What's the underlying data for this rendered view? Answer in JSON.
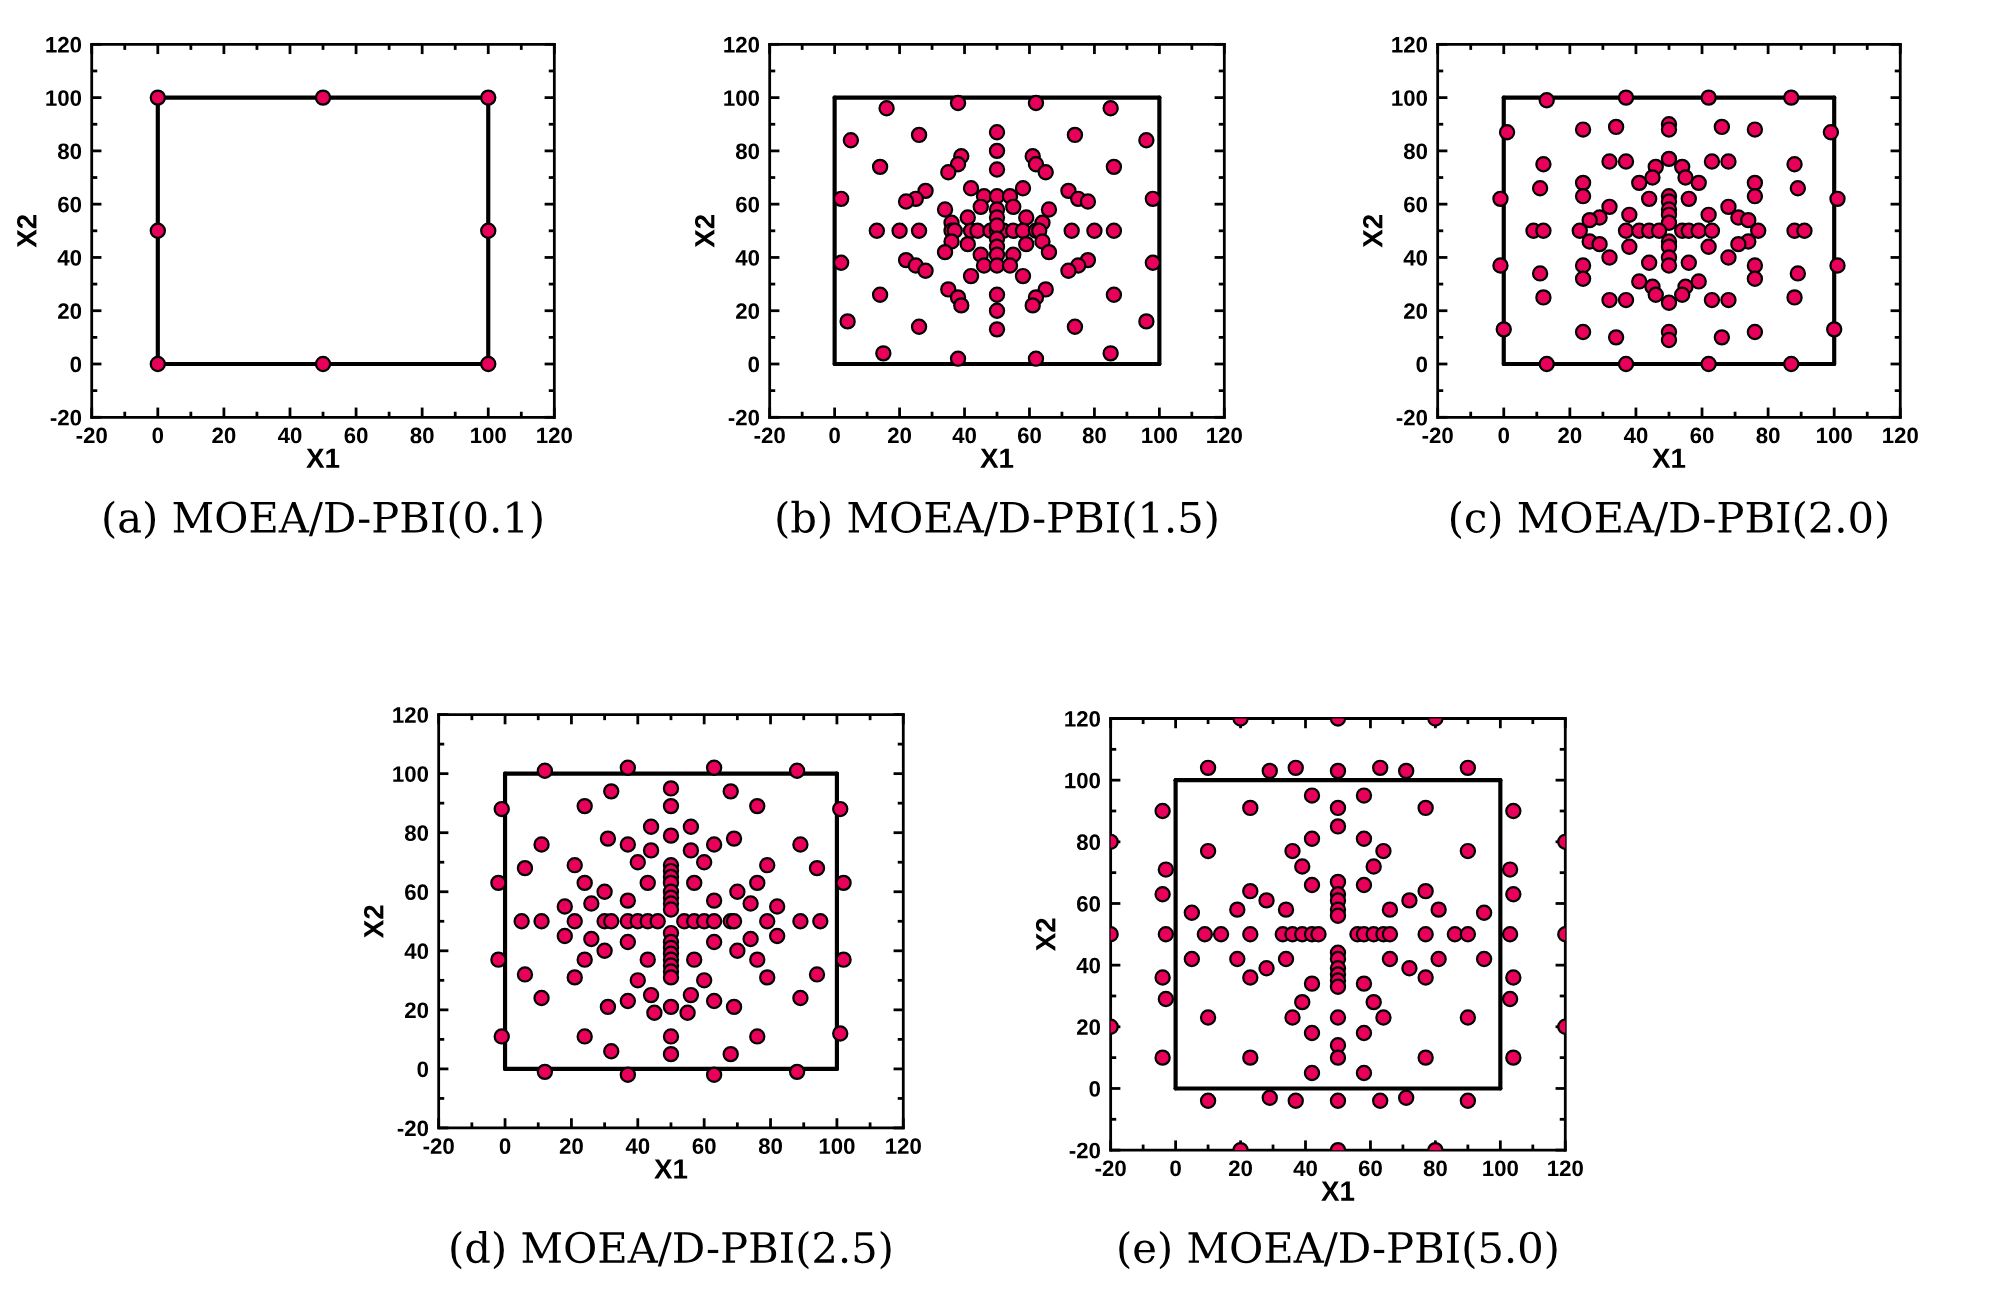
{
  "chart_data": [
    {
      "type": "scatter",
      "title": "(a) MOEA/D-PBI(0.1)",
      "xlabel": "X1",
      "ylabel": "X2",
      "xlim": [
        -20,
        120
      ],
      "ylim": [
        -20,
        120
      ],
      "xticks": [
        -20,
        0,
        20,
        40,
        60,
        80,
        100,
        120
      ],
      "yticks": [
        -20,
        0,
        20,
        40,
        60,
        80,
        100,
        120
      ],
      "marker": "circle",
      "series": [
        {
          "type": "line",
          "marker": "none",
          "color": "#000000",
          "x": [
            0,
            100
          ],
          "values": [
            0,
            0
          ]
        },
        {
          "type": "line",
          "marker": "none",
          "color": "#000000",
          "x": [
            0,
            100
          ],
          "values": [
            100,
            100
          ]
        },
        {
          "type": "line",
          "marker": "none",
          "color": "#000000",
          "x": [
            0,
            0
          ],
          "values": [
            0,
            100
          ]
        },
        {
          "type": "line",
          "marker": "none",
          "color": "#000000",
          "x": [
            100,
            100
          ],
          "values": [
            0,
            100
          ]
        },
        {
          "color": "#e8005a",
          "x": [
            0,
            0,
            0,
            50,
            50,
            100,
            100,
            100
          ],
          "values": [
            0,
            50,
            100,
            0,
            100,
            0,
            50,
            100
          ]
        }
      ]
    },
    {
      "type": "scatter",
      "title": "(b) MOEA/D-PBI(1.5)",
      "xlabel": "X1",
      "ylabel": "X2",
      "xlim": [
        -20,
        120
      ],
      "ylim": [
        -20,
        120
      ],
      "xticks": [
        -20,
        0,
        20,
        40,
        60,
        80,
        100,
        120
      ],
      "yticks": [
        -20,
        0,
        20,
        40,
        60,
        80,
        100,
        120
      ],
      "marker": "circle",
      "series": [
        {
          "type": "line",
          "marker": "none",
          "color": "#000000",
          "x": [
            0,
            100
          ],
          "values": [
            0,
            0
          ]
        },
        {
          "type": "line",
          "marker": "none",
          "color": "#000000",
          "x": [
            0,
            100
          ],
          "values": [
            100,
            100
          ]
        },
        {
          "type": "line",
          "marker": "none",
          "color": "#000000",
          "x": [
            0,
            0
          ],
          "values": [
            0,
            100
          ]
        },
        {
          "type": "line",
          "marker": "none",
          "color": "#000000",
          "x": [
            100,
            100
          ],
          "values": [
            0,
            100
          ]
        },
        {
          "color": "#e8005a",
          "x": [
            16,
            38,
            62,
            85,
            5,
            26,
            50,
            74,
            96,
            50,
            39,
            38,
            35,
            61,
            62,
            65,
            14,
            86,
            50,
            42,
            58,
            28,
            25,
            22,
            72,
            75,
            78,
            2,
            98,
            46,
            50,
            54,
            34,
            66,
            45,
            55,
            50,
            50,
            41,
            59,
            36,
            64,
            13,
            20,
            26,
            36,
            37,
            42,
            44,
            48,
            50,
            52,
            55,
            58,
            62,
            63,
            73,
            80,
            86,
            50,
            50,
            50,
            36,
            64,
            41,
            59,
            34,
            66,
            45,
            55,
            50,
            46,
            50,
            54,
            2,
            98,
            22,
            25,
            28,
            78,
            75,
            72,
            42,
            58,
            14,
            86,
            35,
            38,
            39,
            65,
            62,
            61,
            50,
            50,
            50,
            4,
            26,
            74,
            96,
            15,
            38,
            62,
            85
          ],
          "values": [
            96,
            98,
            98,
            96,
            84,
            86,
            87,
            86,
            84,
            80,
            78,
            75,
            72,
            78,
            75,
            72,
            74,
            74,
            73,
            66,
            66,
            65,
            62,
            61,
            65,
            62,
            61,
            62,
            62,
            63,
            63,
            63,
            58,
            58,
            59,
            59,
            58,
            55,
            55,
            55,
            53,
            53,
            50,
            50,
            50,
            50,
            50,
            50,
            50,
            50,
            50,
            50,
            50,
            50,
            50,
            50,
            50,
            50,
            50,
            52,
            47,
            44,
            46,
            46,
            45,
            45,
            42,
            42,
            41,
            41,
            41,
            37,
            37,
            37,
            38,
            38,
            39,
            37,
            35,
            39,
            37,
            35,
            33,
            33,
            26,
            26,
            28,
            25,
            22,
            28,
            25,
            22,
            26,
            20,
            13,
            16,
            14,
            14,
            16,
            4,
            2,
            2,
            4
          ]
        }
      ]
    },
    {
      "type": "scatter",
      "title": "(c) MOEA/D-PBI(2.0)",
      "xlabel": "X1",
      "ylabel": "X2",
      "xlim": [
        -20,
        120
      ],
      "ylim": [
        -20,
        120
      ],
      "xticks": [
        -20,
        0,
        20,
        40,
        60,
        80,
        100,
        120
      ],
      "yticks": [
        -20,
        0,
        20,
        40,
        60,
        80,
        100,
        120
      ],
      "marker": "circle",
      "series": [
        {
          "type": "line",
          "marker": "none",
          "color": "#000000",
          "x": [
            0,
            100
          ],
          "values": [
            0,
            0
          ]
        },
        {
          "type": "line",
          "marker": "none",
          "color": "#000000",
          "x": [
            0,
            100
          ],
          "values": [
            100,
            100
          ]
        },
        {
          "type": "line",
          "marker": "none",
          "color": "#000000",
          "x": [
            0,
            0
          ],
          "values": [
            0,
            100
          ]
        },
        {
          "type": "line",
          "marker": "none",
          "color": "#000000",
          "x": [
            100,
            100
          ],
          "values": [
            0,
            100
          ]
        },
        {
          "color": "#e8005a",
          "x": [
            13,
            37,
            62,
            87,
            13,
            37,
            62,
            87,
            1,
            99,
            24,
            34,
            50,
            50,
            66,
            76,
            12,
            88,
            32,
            37,
            63,
            68,
            50,
            46,
            54,
            41,
            45,
            55,
            59,
            24,
            76,
            11,
            89,
            -1,
            101,
            24,
            76,
            44,
            56,
            50,
            50,
            50,
            50,
            50,
            32,
            68,
            29,
            71,
            26,
            74,
            38,
            62,
            9,
            12,
            23,
            37,
            41,
            44,
            47,
            54,
            56,
            59,
            63,
            77,
            88,
            91,
            50,
            50,
            50,
            50,
            26,
            74,
            29,
            71,
            38,
            62,
            32,
            68,
            44,
            56,
            24,
            76,
            11,
            89,
            -1,
            101,
            24,
            76,
            41,
            45,
            55,
            59,
            46,
            54,
            50,
            12,
            88,
            32,
            37,
            63,
            68,
            0,
            100,
            24,
            34,
            50,
            50,
            66,
            76
          ],
          "values": [
            99,
            100,
            100,
            100,
            0,
            0,
            0,
            0,
            87,
            87,
            88,
            89,
            90,
            88,
            89,
            88,
            75,
            75,
            76,
            76,
            76,
            76,
            77,
            74,
            74,
            68,
            70,
            70,
            68,
            68,
            68,
            66,
            66,
            62,
            62,
            63,
            63,
            62,
            62,
            63,
            61,
            58,
            56,
            53,
            59,
            59,
            55,
            55,
            54,
            54,
            56,
            56,
            50,
            50,
            50,
            50,
            50,
            50,
            50,
            50,
            50,
            50,
            50,
            50,
            50,
            50,
            46,
            44,
            40,
            37,
            46,
            46,
            45,
            45,
            44,
            44,
            40,
            40,
            38,
            38,
            37,
            37,
            34,
            34,
            37,
            37,
            32,
            32,
            31,
            29,
            29,
            31,
            26,
            26,
            23,
            25,
            25,
            24,
            24,
            24,
            24,
            13,
            13,
            12,
            10,
            12,
            9,
            10,
            12
          ]
        }
      ]
    },
    {
      "type": "scatter",
      "title": "(d) MOEA/D-PBI(2.5)",
      "xlabel": "X1",
      "ylabel": "X2",
      "xlim": [
        -20,
        120
      ],
      "ylim": [
        -20,
        120
      ],
      "xticks": [
        -20,
        0,
        20,
        40,
        60,
        80,
        100,
        120
      ],
      "yticks": [
        -20,
        0,
        20,
        40,
        60,
        80,
        100,
        120
      ],
      "marker": "circle",
      "series": [
        {
          "type": "line",
          "marker": "none",
          "color": "#000000",
          "x": [
            0,
            100
          ],
          "values": [
            0,
            0
          ]
        },
        {
          "type": "line",
          "marker": "none",
          "color": "#000000",
          "x": [
            0,
            100
          ],
          "values": [
            100,
            100
          ]
        },
        {
          "type": "line",
          "marker": "none",
          "color": "#000000",
          "x": [
            0,
            0
          ],
          "values": [
            0,
            100
          ]
        },
        {
          "type": "line",
          "marker": "none",
          "color": "#000000",
          "x": [
            100,
            100
          ],
          "values": [
            0,
            100
          ]
        },
        {
          "color": "#e8005a",
          "x": [
            12,
            37,
            63,
            88,
            12,
            37,
            63,
            88,
            -1,
            101,
            32,
            68,
            50,
            50,
            24,
            76,
            44,
            56,
            50,
            31,
            37,
            44,
            56,
            63,
            69,
            11,
            89,
            6,
            94,
            21,
            79,
            40,
            60,
            50,
            50,
            50,
            50,
            50,
            50,
            50,
            50,
            -2,
            102,
            24,
            76,
            43,
            57,
            30,
            70,
            37,
            63,
            18,
            82,
            26,
            74,
            5,
            11,
            21,
            30,
            32,
            37,
            40,
            43,
            46,
            54,
            57,
            60,
            63,
            68,
            69,
            79,
            89,
            95,
            18,
            82,
            26,
            74,
            37,
            63,
            30,
            70,
            50,
            50,
            50,
            50,
            50,
            50,
            50,
            50,
            24,
            76,
            43,
            57,
            -2,
            102,
            6,
            94,
            21,
            79,
            40,
            60,
            11,
            89,
            37,
            63,
            31,
            69,
            44,
            56,
            45,
            55,
            50,
            -1,
            101,
            24,
            76,
            50,
            50,
            32,
            68
          ],
          "values": [
            101,
            102,
            102,
            101,
            -1,
            -2,
            -2,
            -1,
            88,
            88,
            94,
            94,
            95,
            89,
            89,
            89,
            82,
            82,
            79,
            78,
            76,
            74,
            74,
            76,
            78,
            76,
            76,
            68,
            68,
            69,
            69,
            70,
            70,
            69,
            67,
            65,
            63,
            60,
            58,
            56,
            54,
            63,
            63,
            63,
            63,
            63,
            63,
            60,
            60,
            57,
            57,
            55,
            55,
            56,
            56,
            50,
            50,
            50,
            50,
            50,
            50,
            50,
            50,
            50,
            50,
            50,
            50,
            50,
            50,
            50,
            50,
            50,
            50,
            45,
            45,
            44,
            44,
            43,
            43,
            40,
            40,
            46,
            43,
            41,
            39,
            37,
            35,
            33,
            31,
            37,
            37,
            37,
            37,
            37,
            37,
            32,
            32,
            31,
            31,
            30,
            30,
            24,
            24,
            23,
            23,
            21,
            21,
            25,
            25,
            19,
            19,
            21,
            11,
            12,
            11,
            11,
            11,
            5,
            6,
            5
          ]
        }
      ]
    },
    {
      "type": "scatter",
      "title": "(e) MOEA/D-PBI(5.0)",
      "xlabel": "X1",
      "ylabel": "X2",
      "xlim": [
        -20,
        120
      ],
      "ylim": [
        -20,
        120
      ],
      "xticks": [
        -20,
        0,
        20,
        40,
        60,
        80,
        100,
        120
      ],
      "yticks": [
        -20,
        0,
        20,
        40,
        60,
        80,
        100,
        120
      ],
      "marker": "circle",
      "series": [
        {
          "type": "line",
          "marker": "none",
          "color": "#000000",
          "x": [
            0,
            100
          ],
          "values": [
            0,
            0
          ]
        },
        {
          "type": "line",
          "marker": "none",
          "color": "#000000",
          "x": [
            0,
            100
          ],
          "values": [
            100,
            100
          ]
        },
        {
          "type": "line",
          "marker": "none",
          "color": "#000000",
          "x": [
            0,
            0
          ],
          "values": [
            0,
            100
          ]
        },
        {
          "type": "line",
          "marker": "none",
          "color": "#000000",
          "x": [
            100,
            100
          ],
          "values": [
            0,
            100
          ]
        },
        {
          "color": "#e8005a",
          "x": [
            20,
            50,
            80,
            20,
            50,
            80,
            -20,
            -20,
            -20,
            120,
            120,
            120,
            10,
            29,
            37,
            50,
            63,
            71,
            90,
            10,
            29,
            37,
            50,
            63,
            71,
            90,
            -4,
            104,
            23,
            77,
            42,
            58,
            50,
            50,
            10,
            90,
            36,
            64,
            42,
            58,
            39,
            61,
            42,
            58,
            -3,
            103,
            -4,
            104,
            23,
            77,
            28,
            72,
            19,
            81,
            5,
            95,
            34,
            66,
            50,
            50,
            50,
            50,
            50,
            -3,
            9,
            14,
            23,
            33,
            36,
            39,
            42,
            44,
            56,
            58,
            61,
            64,
            66,
            77,
            86,
            90,
            103,
            5,
            95,
            19,
            81,
            34,
            66,
            28,
            72,
            23,
            77,
            -4,
            104,
            -3,
            103,
            50,
            50,
            50,
            50,
            50,
            50,
            42,
            58,
            39,
            61,
            10,
            36,
            50,
            64,
            90,
            42,
            58,
            50,
            -4,
            23,
            50,
            77,
            104,
            42,
            58
          ],
          "values": [
            120,
            120,
            120,
            -20,
            -20,
            -20,
            80,
            50,
            20,
            80,
            50,
            20,
            104,
            103,
            104,
            103,
            104,
            103,
            104,
            -4,
            -3,
            -4,
            -4,
            -4,
            -3,
            -4,
            90,
            90,
            91,
            91,
            95,
            95,
            91,
            85,
            77,
            77,
            77,
            77,
            81,
            81,
            72,
            72,
            66,
            66,
            71,
            71,
            63,
            63,
            64,
            64,
            61,
            61,
            58,
            58,
            57,
            57,
            58,
            58,
            67,
            63,
            61,
            58,
            56,
            50,
            50,
            50,
            50,
            50,
            50,
            50,
            50,
            50,
            50,
            50,
            50,
            50,
            50,
            50,
            50,
            50,
            50,
            42,
            42,
            42,
            42,
            42,
            42,
            39,
            39,
            36,
            36,
            36,
            36,
            29,
            29,
            44,
            42,
            39,
            37,
            35,
            33,
            34,
            34,
            28,
            28,
            23,
            23,
            23,
            23,
            23,
            18,
            18,
            14,
            10,
            10,
            10,
            10,
            10,
            5,
            5
          ]
        }
      ]
    }
  ]
}
